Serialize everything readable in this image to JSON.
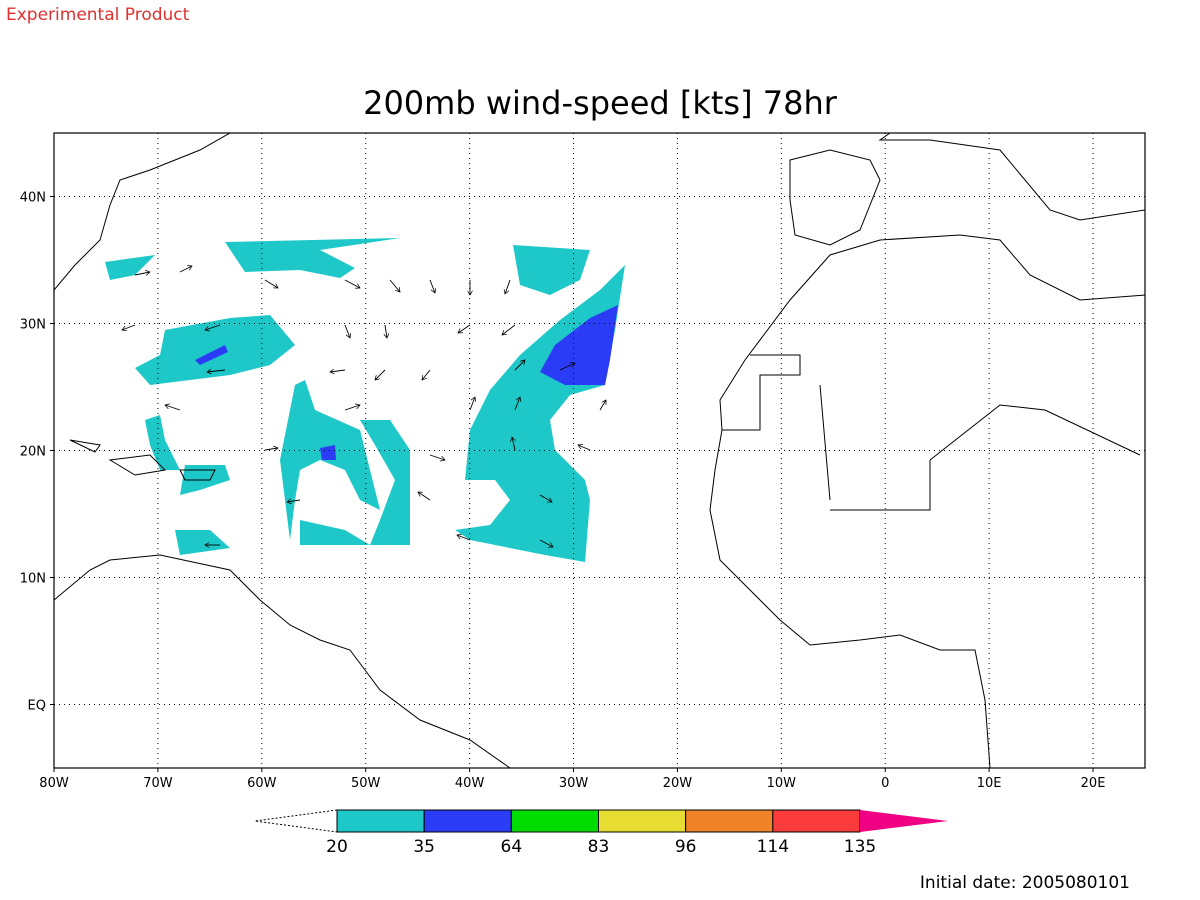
{
  "header": {
    "product": "Experimental Product",
    "title": "200mb wind-speed [kts] 78hr"
  },
  "map": {
    "xlim": [
      -80,
      25
    ],
    "ylim": [
      -5,
      45
    ],
    "xticks": [
      {
        "value": -80,
        "label": "80W"
      },
      {
        "value": -70,
        "label": "70W"
      },
      {
        "value": -60,
        "label": "60W"
      },
      {
        "value": -50,
        "label": "50W"
      },
      {
        "value": -40,
        "label": "40W"
      },
      {
        "value": -30,
        "label": "30W"
      },
      {
        "value": -20,
        "label": "20W"
      },
      {
        "value": -10,
        "label": "10W"
      },
      0,
      {
        "value": 10,
        "label": "10E"
      },
      {
        "value": 20,
        "label": "20E"
      }
    ],
    "yticks": [
      {
        "value": 0,
        "label": "EQ"
      },
      {
        "value": 10,
        "label": "10N"
      },
      {
        "value": 20,
        "label": "20N"
      },
      {
        "value": 30,
        "label": "30N"
      },
      {
        "value": 40,
        "label": "40N"
      }
    ],
    "grid": true
  },
  "colorbar": {
    "levels": [
      20,
      35,
      64,
      83,
      96,
      114,
      135
    ],
    "colors": [
      "#1fc8c8",
      "#2a3cf5",
      "#00dc00",
      "#e6dc32",
      "#f08228",
      "#fa3c3c",
      "#f00082"
    ]
  },
  "footer": {
    "initial_date": "Initial date: 2005080101"
  }
}
